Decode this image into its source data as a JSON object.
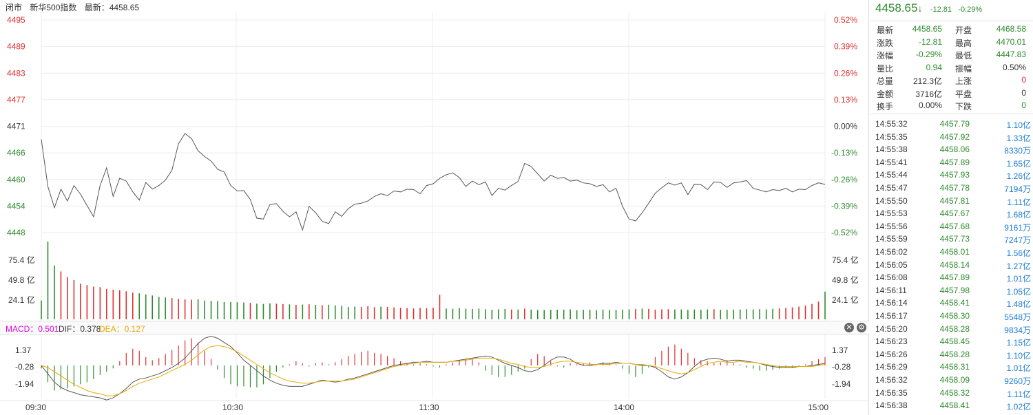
{
  "header": {
    "status": "闭市",
    "index_name": "新华500指数",
    "latest": "最新：4458.65"
  },
  "macd_header": {
    "macd": "MACD：0.501",
    "dif": "DIF：0.378",
    "dea": "DEA：0.127",
    "close_icon": "close-icon",
    "settings_icon": "gear-icon"
  },
  "colors": {
    "up": "#e03030",
    "down": "#2e8b2e",
    "price_line": "#555555",
    "dif": "#555555",
    "dea": "#e8a900",
    "macd_label": "#e000e0",
    "dea_label": "#e8a900"
  },
  "quote": {
    "price": "4458.65",
    "arrow": "↓",
    "change": "-12.81",
    "pct": "-0.29%"
  },
  "stats": [
    {
      "l1": "最新",
      "v1": "4458.65",
      "c1": "g",
      "l2": "开盘",
      "v2": "4468.58",
      "c2": "g"
    },
    {
      "l1": "涨跌",
      "v1": "-12.81",
      "c1": "g",
      "l2": "最高",
      "v2": "4470.01",
      "c2": "g"
    },
    {
      "l1": "涨幅",
      "v1": "-0.29%",
      "c1": "g",
      "l2": "最低",
      "v2": "4447.83",
      "c2": "g"
    },
    {
      "l1": "量比",
      "v1": "0.94",
      "c1": "g",
      "l2": "振幅",
      "v2": "0.50%",
      "c2": "k"
    },
    {
      "l1": "总量",
      "v1": "212.3亿",
      "c1": "k",
      "l2": "上涨",
      "v2": "0",
      "c2": "r"
    },
    {
      "l1": "金额",
      "v1": "3716亿",
      "c1": "k",
      "l2": "平盘",
      "v2": "0",
      "c2": "k"
    },
    {
      "l1": "换手",
      "v1": "0.00%",
      "c1": "k",
      "l2": "下跌",
      "v2": "0",
      "c2": "g"
    }
  ],
  "ticks": [
    {
      "time": "14:55:32",
      "price": "4457.79",
      "vol": "1.10亿"
    },
    {
      "time": "14:55:35",
      "price": "4457.92",
      "vol": "1.33亿"
    },
    {
      "time": "14:55:38",
      "price": "4458.06",
      "vol": "8330万"
    },
    {
      "time": "14:55:41",
      "price": "4457.89",
      "vol": "1.65亿"
    },
    {
      "time": "14:55:44",
      "price": "4457.93",
      "vol": "1.26亿"
    },
    {
      "time": "14:55:47",
      "price": "4457.78",
      "vol": "7194万"
    },
    {
      "time": "14:55:50",
      "price": "4457.81",
      "vol": "1.11亿"
    },
    {
      "time": "14:55:53",
      "price": "4457.67",
      "vol": "1.68亿"
    },
    {
      "time": "14:55:56",
      "price": "4457.68",
      "vol": "9161万"
    },
    {
      "time": "14:55:59",
      "price": "4457.73",
      "vol": "7247万"
    },
    {
      "time": "14:56:02",
      "price": "4458.01",
      "vol": "1.56亿"
    },
    {
      "time": "14:56:05",
      "price": "4458.14",
      "vol": "1.27亿"
    },
    {
      "time": "14:56:08",
      "price": "4457.89",
      "vol": "1.01亿"
    },
    {
      "time": "14:56:11",
      "price": "4457.98",
      "vol": "1.05亿"
    },
    {
      "time": "14:56:14",
      "price": "4458.41",
      "vol": "1.48亿"
    },
    {
      "time": "14:56:17",
      "price": "4458.30",
      "vol": "5548万"
    },
    {
      "time": "14:56:20",
      "price": "4458.28",
      "vol": "9834万"
    },
    {
      "time": "14:56:23",
      "price": "4458.45",
      "vol": "1.15亿"
    },
    {
      "time": "14:56:26",
      "price": "4458.28",
      "vol": "1.10亿"
    },
    {
      "time": "14:56:29",
      "price": "4458.31",
      "vol": "1.01亿"
    },
    {
      "time": "14:56:32",
      "price": "4458.09",
      "vol": "9260万"
    },
    {
      "time": "14:56:35",
      "price": "4458.32",
      "vol": "1.11亿"
    },
    {
      "time": "14:56:38",
      "price": "4458.41",
      "vol": "1.02亿"
    }
  ],
  "chart_data": [
    {
      "type": "line",
      "title": "",
      "y_ticks_left": [
        "4495",
        "4489",
        "4483",
        "4477",
        "4471",
        "4466",
        "4460",
        "4454",
        "4448"
      ],
      "y_ticks_right": [
        "0.52%",
        "0.39%",
        "0.26%",
        "0.13%",
        "0.00%",
        "-0.13%",
        "-0.26%",
        "-0.39%",
        "-0.52%"
      ],
      "x_ticks": [
        "09:30",
        "10:30",
        "11:30",
        "14:00",
        "15:00"
      ],
      "ylim": [
        4448,
        4495
      ],
      "x": [
        0,
        2,
        4,
        6,
        8,
        10,
        12,
        14,
        16,
        18,
        20,
        22,
        24,
        26,
        28,
        30,
        32,
        34,
        36,
        38,
        40,
        42,
        44,
        46,
        48,
        50,
        52,
        54,
        56,
        58,
        60,
        62,
        64,
        66,
        68,
        70,
        72,
        74,
        76,
        78,
        80,
        82,
        84,
        86,
        88,
        90,
        92,
        94,
        96,
        98,
        100,
        102,
        104,
        106,
        108,
        110,
        112,
        114,
        116,
        118,
        120,
        122,
        124,
        126,
        128,
        130,
        132,
        134,
        136,
        138,
        140,
        142,
        144,
        146,
        148,
        150,
        152,
        154,
        156,
        158,
        160,
        162,
        164,
        166,
        168,
        170,
        172,
        174,
        176,
        178,
        180,
        182,
        184,
        186,
        188,
        190,
        192,
        194,
        196,
        198,
        200,
        202,
        204,
        206,
        208,
        210,
        212,
        214,
        216,
        218,
        220,
        222,
        224,
        226,
        228,
        230,
        232,
        234,
        236,
        238,
        240
      ],
      "series": [
        {
          "values": [
            4468.6,
            4458.2,
            4453.5,
            4457.6,
            4455.0,
            4458.4,
            4456.5,
            4454.0,
            4451.5,
            4458.4,
            4462.3,
            4456.0,
            4460.0,
            4459.4,
            4457.0,
            4455.2,
            4459.1,
            4457.6,
            4458.4,
            4459.6,
            4461.8,
            4467.6,
            4469.9,
            4468.8,
            4466.1,
            4464.8,
            4463.8,
            4462.0,
            4461.4,
            4458.4,
            4457.2,
            4457.3,
            4455.3,
            4451.2,
            4451.0,
            4454.2,
            4454.4,
            4452.7,
            4451.5,
            4452.6,
            4448.6,
            4453.8,
            4452.4,
            4450.5,
            4450.0,
            4452.6,
            4451.6,
            4453.3,
            4454.3,
            4454.5,
            4455.0,
            4456.0,
            4456.6,
            4456.2,
            4457.2,
            4457.0,
            4457.6,
            4457.5,
            4456.6,
            4458.4,
            4458.8,
            4460.0,
            4460.8,
            4461.2,
            4460.2,
            4458.2,
            4459.4,
            4458.6,
            4459.2,
            4456.2,
            4457.8,
            4457.4,
            4458.4,
            4459.3,
            4463.3,
            4462.6,
            4461.0,
            4459.4,
            4460.7,
            4460.0,
            4460.2,
            4459.4,
            4459.6,
            4459.0,
            4458.8,
            4458.2,
            4458.6,
            4457.0,
            4457.8,
            4453.8,
            4451.0,
            4450.6,
            4452.4,
            4454.5,
            4456.7,
            4457.9,
            4459.0,
            4458.5,
            4459.0,
            4456.4,
            4458.7,
            4458.6,
            4457.5,
            4459.2,
            4459.1,
            4458.0,
            4459.0,
            4459.2,
            4459.5,
            4457.8,
            4457.4,
            4457.0,
            4457.5,
            4457.3,
            4457.8,
            4457.0,
            4457.6,
            4457.5,
            4458.4,
            4459.0,
            4458.65
          ]
        }
      ]
    },
    {
      "type": "bar",
      "title": "",
      "y_ticks": [
        "75.4 亿",
        "49.8 亿",
        "24.1 亿"
      ],
      "ylim": [
        0,
        101
      ],
      "x_step": 2,
      "values": [
        24.5,
        101,
        70.0,
        62.2,
        55.0,
        51.0,
        46.3,
        44.4,
        42.5,
        41.8,
        39.5,
        38.5,
        37.7,
        36.4,
        34.8,
        33.8,
        32.4,
        31.0,
        29.3,
        28.5,
        27.5,
        26.7,
        26.0,
        25.5,
        26.0,
        24.4,
        24.0,
        23.7,
        22.4,
        22.6,
        22.2,
        21.9,
        21.4,
        20.4,
        20.0,
        20.8,
        20.3,
        19.9,
        19.4,
        18.9,
        19.2,
        19.5,
        18.8,
        18.4,
        18.9,
        18.2,
        17.5,
        16.0,
        16.6,
        16.2,
        17.0,
        15.8,
        16.5,
        16.2,
        15.5,
        15.0,
        14.6,
        14.1,
        14.8,
        14.4,
        15.2,
        32.0,
        14.0,
        13.8,
        14.5,
        13.7,
        13.5,
        13.9,
        13.2,
        12.5,
        13.0,
        13.5,
        12.9,
        12.7,
        14.0,
        12.6,
        12.2,
        12.3,
        12.5,
        12.4,
        12.6,
        12.8,
        11.8,
        12.4,
        12.5,
        12.0,
        12.7,
        12.1,
        12.3,
        12.6,
        12.9,
        13.5,
        14.0,
        13.6,
        12.6,
        12.9,
        13.2,
        12.8,
        12.8,
        12.3,
        12.8,
        12.4,
        12.9,
        13.2,
        12.5,
        12.4,
        12.6,
        12.9,
        13.2,
        13.0,
        13.3,
        13.0,
        13.6,
        14.2,
        14.8,
        15.6,
        16.5,
        17.8,
        20.0,
        23.0,
        36.0
      ],
      "colors": [
        "down",
        "down",
        "down",
        "up",
        "up",
        "up",
        "up",
        "up",
        "up",
        "up",
        "up",
        "up",
        "up",
        "up",
        "up",
        "down",
        "down",
        "down",
        "down",
        "down",
        "up",
        "up",
        "up",
        "up",
        "down",
        "down",
        "down",
        "down",
        "down",
        "down",
        "down",
        "down",
        "up",
        "down",
        "down",
        "down",
        "up",
        "up",
        "down",
        "up",
        "down",
        "up",
        "down",
        "up",
        "down",
        "down",
        "down",
        "down",
        "down",
        "up",
        "up",
        "up",
        "down",
        "up",
        "up",
        "up",
        "up",
        "up",
        "up",
        "up",
        "up",
        "up",
        "down",
        "down",
        "down",
        "down",
        "down",
        "down",
        "down",
        "down",
        "down",
        "down",
        "up",
        "down",
        "up",
        "down",
        "down",
        "down",
        "down",
        "down",
        "down",
        "down",
        "down",
        "down",
        "down",
        "down",
        "down",
        "down",
        "down",
        "down",
        "down",
        "up",
        "down",
        "up",
        "up",
        "up",
        "up",
        "down",
        "down",
        "down",
        "down",
        "down",
        "down",
        "up",
        "down",
        "down",
        "down",
        "down",
        "down",
        "down",
        "down",
        "down",
        "down",
        "up",
        "up",
        "up",
        "up",
        "up",
        "up",
        "up",
        "down"
      ]
    },
    {
      "type": "bar",
      "title": "MACD",
      "y_ticks": [
        "1.37",
        "-0.28",
        "-1.94"
      ],
      "ylim": [
        -3.4,
        2.7
      ],
      "x_step": 2,
      "macd": [
        -0.28,
        -1.6,
        -2.4,
        -2.3,
        -2.2,
        -2.0,
        -1.8,
        -1.6,
        -1.3,
        -0.9,
        -0.6,
        -0.28,
        0.4,
        1.2,
        1.6,
        1.4,
        0.8,
        0.5,
        0.7,
        1.1,
        1.5,
        1.9,
        2.4,
        2.6,
        2.2,
        1.4,
        0.6,
        -0.4,
        -1.2,
        -1.8,
        -2.0,
        -2.0,
        -2.1,
        -2.1,
        -1.8,
        -1.2,
        -0.6,
        -0.2,
        0.1,
        0.4,
        0.2,
        -0.1,
        0.2,
        0.3,
        0.1,
        0.3,
        0.6,
        0.9,
        1.1,
        1.3,
        1.4,
        1.2,
        1.1,
        0.9,
        0.7,
        0.4,
        0.2,
        0.1,
        0.2,
        0.1,
        -0.1,
        -0.2,
        0.1,
        0.3,
        0.5,
        0.6,
        0.6,
        0.3,
        -0.5,
        -0.9,
        -1.1,
        -1.1,
        -0.9,
        -0.6,
        -0.3,
        0.6,
        1.1,
        0.9,
        0.4,
        -0.1,
        -0.2,
        0.2,
        0.1,
        0.2,
        0.3,
        0.1,
        0.3,
        0.2,
        0.1,
        -0.3,
        -0.8,
        -1.1,
        -0.8,
        -0.2,
        0.8,
        1.4,
        1.8,
        2.0,
        1.6,
        1.2,
        0.7,
        0.5,
        0.4,
        0.2,
        0.3,
        0.5,
        0.2,
        0.1,
        -0.2,
        -0.3,
        -0.5,
        -0.5,
        -0.4,
        -0.3,
        -0.2,
        -0.2,
        -0.1,
        0.1,
        0.4,
        0.6,
        0.8
      ],
      "dif": [
        0.0,
        -0.8,
        -1.6,
        -2.1,
        -2.4,
        -2.6,
        -2.8,
        -2.9,
        -3.0,
        -3.1,
        -3.3,
        -3.1,
        -2.7,
        -2.2,
        -1.6,
        -1.3,
        -1.2,
        -1.0,
        -0.8,
        -0.5,
        -0.2,
        0.2,
        0.7,
        1.4,
        2.1,
        2.6,
        2.8,
        2.6,
        2.2,
        1.8,
        1.2,
        0.5,
        0.0,
        -0.5,
        -1.0,
        -1.4,
        -1.7,
        -1.9,
        -2.0,
        -2.0,
        -2.0,
        -1.8,
        -1.6,
        -1.4,
        -1.5,
        -1.6,
        -1.5,
        -1.3,
        -1.2,
        -1.0,
        -0.8,
        -0.6,
        -0.4,
        -0.2,
        0.0,
        0.1,
        0.2,
        0.3,
        0.3,
        0.4,
        0.3,
        0.3,
        0.3,
        0.4,
        0.5,
        0.6,
        0.7,
        0.8,
        0.9,
        0.8,
        0.5,
        0.2,
        0.0,
        -0.2,
        -0.5,
        -0.6,
        -0.4,
        0.0,
        0.5,
        0.8,
        0.8,
        0.6,
        0.2,
        0.0,
        0.0,
        0.1,
        0.2,
        0.2,
        0.3,
        0.2,
        0.2,
        0.1,
        0.0,
        0.0,
        -0.2,
        -0.6,
        -1.1,
        -1.3,
        -1.1,
        -0.7,
        -0.1,
        0.4,
        0.6,
        0.7,
        0.6,
        0.4,
        0.5,
        0.5,
        0.4,
        0.3,
        0.2,
        0.0,
        -0.1,
        -0.2,
        -0.2,
        -0.2,
        -0.1,
        -0.1,
        0.0,
        0.1,
        0.2
      ],
      "dea": [
        0.0,
        -0.2,
        -0.6,
        -1.0,
        -1.4,
        -1.8,
        -2.1,
        -2.4,
        -2.6,
        -2.7,
        -2.9,
        -2.9,
        -2.7,
        -2.4,
        -2.0,
        -1.7,
        -1.5,
        -1.3,
        -1.1,
        -0.8,
        -0.5,
        -0.2,
        0.1,
        0.5,
        1.0,
        1.5,
        1.8,
        1.9,
        1.8,
        1.6,
        1.3,
        0.9,
        0.5,
        0.1,
        -0.3,
        -0.7,
        -1.0,
        -1.3,
        -1.5,
        -1.6,
        -1.7,
        -1.7,
        -1.6,
        -1.5,
        -1.5,
        -1.5,
        -1.5,
        -1.4,
        -1.3,
        -1.1,
        -0.9,
        -0.7,
        -0.5,
        -0.3,
        -0.1,
        0.0,
        0.1,
        0.2,
        0.3,
        0.3,
        0.3,
        0.3,
        0.3,
        0.4,
        0.4,
        0.5,
        0.6,
        0.7,
        0.7,
        0.7,
        0.6,
        0.4,
        0.2,
        0.1,
        -0.1,
        -0.2,
        -0.2,
        -0.1,
        0.1,
        0.3,
        0.4,
        0.4,
        0.3,
        0.2,
        0.1,
        0.1,
        0.1,
        0.1,
        0.2,
        0.2,
        0.2,
        0.1,
        0.1,
        0.0,
        -0.1,
        -0.3,
        -0.5,
        -0.7,
        -0.8,
        -0.7,
        -0.4,
        -0.1,
        0.2,
        0.3,
        0.4,
        0.3,
        0.3,
        0.4,
        0.3,
        0.3,
        0.2,
        0.1,
        0.0,
        -0.1,
        -0.1,
        -0.1,
        -0.1,
        -0.1,
        -0.1,
        0.0,
        0.1
      ]
    }
  ]
}
